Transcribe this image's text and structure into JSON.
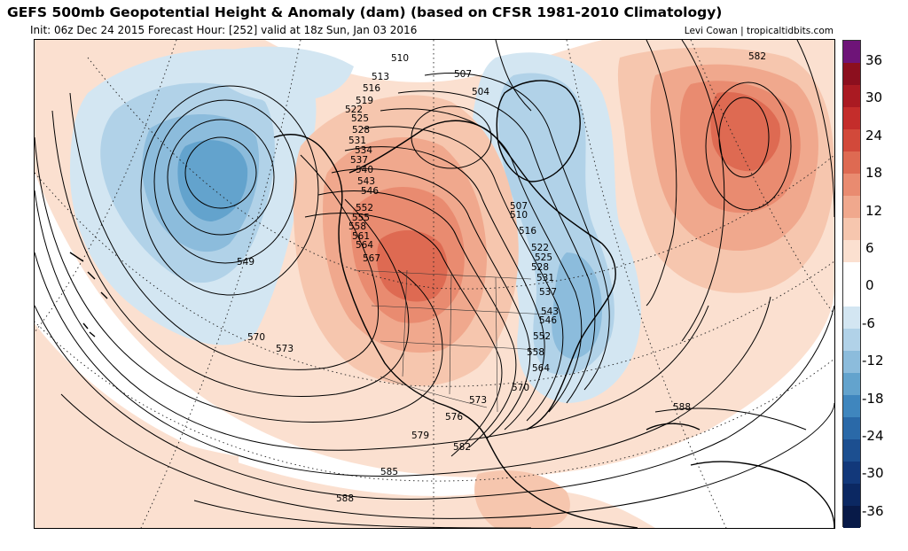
{
  "header": {
    "title": "GEFS 500mb Geopotential Height & Anomaly (dam) (based on CFSR 1981-2010 Climatology)",
    "subtitle": "Init: 06z Dec 24 2015   Forecast Hour: [252]   valid at 18z Sun, Jan 03 2016",
    "credit": "Levi Cowan | tropicaltidbits.com"
  },
  "colorbar": {
    "ticks": [
      "36",
      "30",
      "24",
      "18",
      "12",
      "6",
      "0",
      "-6",
      "-12",
      "-18",
      "-24",
      "-30",
      "-36"
    ],
    "colors": [
      "#6e1478",
      "#8c0f1e",
      "#aa1a22",
      "#c42d2b",
      "#d2493a",
      "#de6a52",
      "#e98b70",
      "#f0a88d",
      "#f6c6ae",
      "#fbe0d0",
      "#ffffff",
      "#ffffff",
      "#d3e6f2",
      "#b1d2e8",
      "#8cbcdc",
      "#63a3cd",
      "#3f86be",
      "#2a69a8",
      "#1c4f90",
      "#12387a",
      "#0b2862",
      "#081a48"
    ]
  },
  "contour_labels": [
    {
      "id": "c510",
      "text": "510"
    },
    {
      "id": "c513",
      "text": "513"
    },
    {
      "id": "c516",
      "text": "516"
    },
    {
      "id": "c519",
      "text": "519"
    },
    {
      "id": "c522",
      "text": "522"
    },
    {
      "id": "c525",
      "text": "525"
    },
    {
      "id": "c528",
      "text": "528"
    },
    {
      "id": "c531",
      "text": "531"
    },
    {
      "id": "c534",
      "text": "534"
    },
    {
      "id": "c537",
      "text": "537"
    },
    {
      "id": "c540",
      "text": "540"
    },
    {
      "id": "c543",
      "text": "543"
    },
    {
      "id": "c546",
      "text": "546"
    },
    {
      "id": "c552",
      "text": "552"
    },
    {
      "id": "c555",
      "text": "555"
    },
    {
      "id": "c558",
      "text": "558"
    },
    {
      "id": "c561",
      "text": "561"
    },
    {
      "id": "c564",
      "text": "564"
    },
    {
      "id": "c567",
      "text": "567"
    },
    {
      "id": "c549",
      "text": "549"
    },
    {
      "id": "c570w",
      "text": "570"
    },
    {
      "id": "c573w",
      "text": "573"
    },
    {
      "id": "c507n",
      "text": "507"
    },
    {
      "id": "c504n",
      "text": "504"
    },
    {
      "id": "c507e",
      "text": "507"
    },
    {
      "id": "c510e",
      "text": "510"
    },
    {
      "id": "c516e",
      "text": "516"
    },
    {
      "id": "c522e",
      "text": "522"
    },
    {
      "id": "c525e",
      "text": "525"
    },
    {
      "id": "c528e",
      "text": "528"
    },
    {
      "id": "c531e",
      "text": "531"
    },
    {
      "id": "c537e",
      "text": "537"
    },
    {
      "id": "c543e",
      "text": "543"
    },
    {
      "id": "c546e",
      "text": "546"
    },
    {
      "id": "c552e",
      "text": "552"
    },
    {
      "id": "c558e",
      "text": "558"
    },
    {
      "id": "c564e",
      "text": "564"
    },
    {
      "id": "c570e",
      "text": "570"
    },
    {
      "id": "c573s",
      "text": "573"
    },
    {
      "id": "c576",
      "text": "576"
    },
    {
      "id": "c579",
      "text": "579"
    },
    {
      "id": "c582s",
      "text": "582"
    },
    {
      "id": "c585",
      "text": "585"
    },
    {
      "id": "c588s",
      "text": "588"
    },
    {
      "id": "c588e",
      "text": "588"
    },
    {
      "id": "c582ne",
      "text": "582"
    }
  ]
}
